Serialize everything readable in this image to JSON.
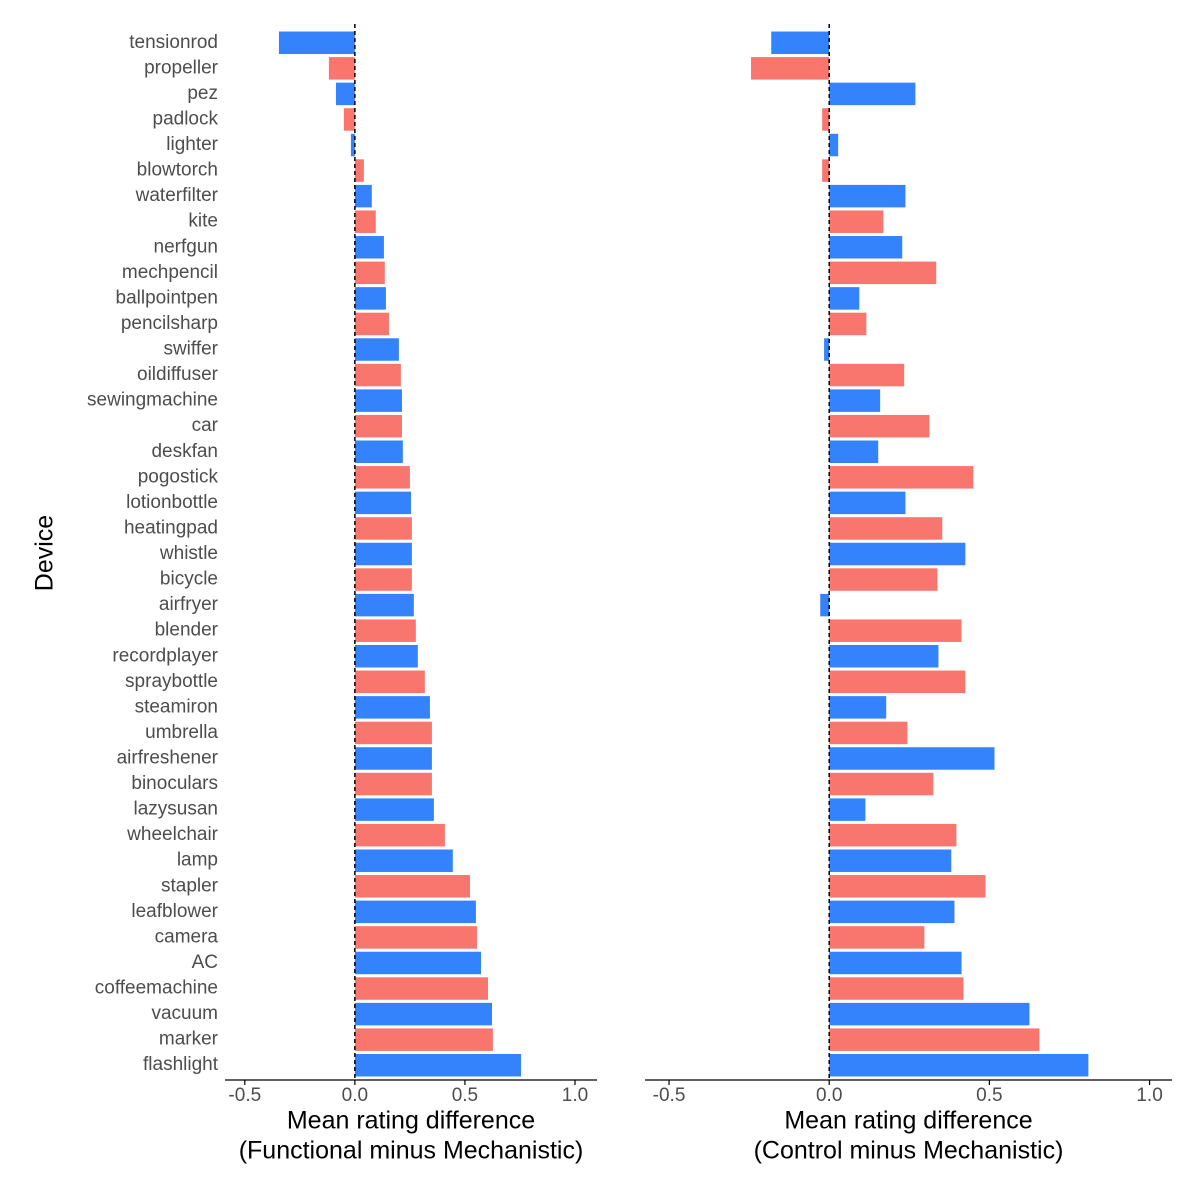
{
  "chart_data": [
    {
      "type": "bar",
      "orientation": "horizontal",
      "ylabel": "Device",
      "xlabel": [
        "Mean rating difference",
        "(Functional minus Mechanistic)"
      ],
      "categories": [
        "tensionrod",
        "propeller",
        "pez",
        "padlock",
        "lighter",
        "blowtorch",
        "waterfilter",
        "kite",
        "nerfgun",
        "mechpencil",
        "ballpointpen",
        "pencilsharp",
        "swiffer",
        "oildiffuser",
        "sewingmachine",
        "car",
        "deskfan",
        "pogostick",
        "lotionbottle",
        "heatingpad",
        "whistle",
        "bicycle",
        "airfryer",
        "blender",
        "recordplayer",
        "spraybottle",
        "steamiron",
        "umbrella",
        "airfreshener",
        "binoculars",
        "lazysusan",
        "wheelchair",
        "lamp",
        "stapler",
        "leafblower",
        "camera",
        "AC",
        "coffeemachine",
        "vacuum",
        "marker",
        "flashlight"
      ],
      "values": [
        -0.345,
        -0.118,
        -0.086,
        -0.05,
        -0.018,
        0.041,
        0.077,
        0.095,
        0.132,
        0.136,
        0.141,
        0.155,
        0.2,
        0.209,
        0.214,
        0.214,
        0.218,
        0.25,
        0.255,
        0.259,
        0.259,
        0.259,
        0.268,
        0.277,
        0.286,
        0.318,
        0.341,
        0.35,
        0.35,
        0.35,
        0.359,
        0.409,
        0.445,
        0.523,
        0.55,
        0.555,
        0.573,
        0.605,
        0.623,
        0.627,
        0.755
      ],
      "colors": [
        "#3483fd",
        "#f8766d"
      ],
      "xlim": [
        -0.59,
        1.1
      ],
      "xticks": [
        -0.5,
        {
          "value": 0,
          "label": "0.0"
        },
        0.5,
        {
          "value": 1,
          "label": "1.0"
        }
      ],
      "zero_line": true
    },
    {
      "type": "bar",
      "orientation": "horizontal",
      "xlabel": [
        "Mean rating difference",
        "(Control minus Mechanistic)"
      ],
      "values": [
        -0.181,
        -0.244,
        0.269,
        -0.022,
        0.028,
        -0.022,
        0.238,
        0.169,
        0.228,
        0.334,
        0.094,
        0.116,
        -0.016,
        0.234,
        0.159,
        0.313,
        0.153,
        0.45,
        0.238,
        0.353,
        0.425,
        0.338,
        -0.028,
        0.413,
        0.341,
        0.425,
        0.178,
        0.244,
        0.516,
        0.325,
        0.113,
        0.397,
        0.381,
        0.488,
        0.391,
        0.297,
        0.413,
        0.419,
        0.625,
        0.656,
        0.809
      ],
      "colors": [
        "#3483fd",
        "#f8766d"
      ],
      "xlim": [
        -0.575,
        1.07
      ],
      "xticks": [
        -0.5,
        {
          "value": 0,
          "label": "0.0"
        },
        0.5,
        {
          "value": 1,
          "label": "1.0"
        }
      ],
      "zero_line": true
    }
  ]
}
